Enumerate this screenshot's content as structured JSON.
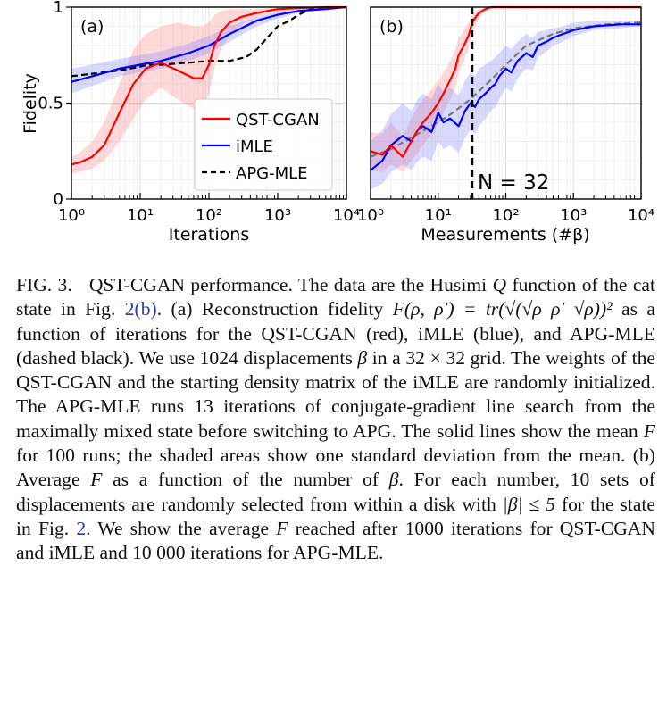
{
  "chart_data": [
    {
      "type": "line",
      "panel_label": "(a)",
      "xlabel": "Iterations",
      "ylabel": "Fidelity",
      "x_scale": "log",
      "xlim": [
        1,
        10000
      ],
      "ylim": [
        0,
        1
      ],
      "xticks": [
        1,
        10,
        100,
        1000,
        10000
      ],
      "xtick_labels": [
        "10⁰",
        "10¹",
        "10²",
        "10³",
        "10⁴"
      ],
      "yticks": [
        0,
        0.5,
        1
      ],
      "ytick_labels": [
        "0",
        "0.5",
        "1"
      ],
      "grid": true,
      "legend_position": "center-right",
      "series": [
        {
          "name": "QST-CGAN",
          "color": "#ff0000",
          "style": "solid",
          "x": [
            1,
            1.3,
            2,
            3,
            5,
            8,
            12,
            20,
            35,
            60,
            80,
            100,
            120,
            150,
            200,
            300,
            500,
            1000,
            2000,
            5000,
            10000
          ],
          "y": [
            0.18,
            0.19,
            0.22,
            0.28,
            0.45,
            0.6,
            0.68,
            0.71,
            0.67,
            0.63,
            0.63,
            0.7,
            0.8,
            0.87,
            0.92,
            0.95,
            0.97,
            0.99,
            0.995,
            1.0,
            1.0
          ],
          "band_lo": [
            0.13,
            0.14,
            0.16,
            0.2,
            0.3,
            0.42,
            0.52,
            0.58,
            0.52,
            0.47,
            0.47,
            0.55,
            0.68,
            0.78,
            0.86,
            0.91,
            0.95,
            0.98,
            0.99,
            0.995,
            0.995
          ],
          "band_hi": [
            0.22,
            0.24,
            0.3,
            0.4,
            0.6,
            0.78,
            0.86,
            0.9,
            0.92,
            0.9,
            0.9,
            0.92,
            0.96,
            0.98,
            0.99,
            0.99,
            0.99,
            1.0,
            1.0,
            1.0,
            1.0
          ]
        },
        {
          "name": "iMLE",
          "color": "#0000ff",
          "style": "solid",
          "x": [
            1,
            2,
            5,
            10,
            20,
            50,
            100,
            200,
            500,
            1000,
            2000,
            5000,
            10000
          ],
          "y": [
            0.61,
            0.64,
            0.68,
            0.7,
            0.72,
            0.76,
            0.8,
            0.86,
            0.93,
            0.96,
            0.98,
            0.99,
            1.0
          ],
          "band_lo": [
            0.55,
            0.59,
            0.64,
            0.66,
            0.68,
            0.72,
            0.76,
            0.82,
            0.9,
            0.94,
            0.97,
            0.985,
            0.995
          ],
          "band_hi": [
            0.68,
            0.7,
            0.73,
            0.75,
            0.77,
            0.81,
            0.85,
            0.9,
            0.95,
            0.98,
            0.99,
            0.995,
            1.0
          ]
        },
        {
          "name": "APG-MLE",
          "color": "#000000",
          "style": "dashed",
          "x": [
            1,
            5,
            10,
            13,
            20,
            50,
            100,
            200,
            350,
            500,
            700,
            1000,
            1500,
            2000,
            3000,
            10000
          ],
          "y": [
            0.64,
            0.67,
            0.69,
            0.7,
            0.7,
            0.71,
            0.72,
            0.72,
            0.74,
            0.78,
            0.84,
            0.9,
            0.93,
            0.96,
            0.99,
            1.0
          ]
        }
      ]
    },
    {
      "type": "line",
      "panel_label": "(b)",
      "xlabel": "Measurements (#β)",
      "x_scale": "log",
      "xlim": [
        1,
        10000
      ],
      "ylim": [
        0,
        1
      ],
      "xticks": [
        1,
        10,
        100,
        1000,
        10000
      ],
      "xtick_labels": [
        "10⁰",
        "10¹",
        "10²",
        "10³",
        "10⁴"
      ],
      "grid": true,
      "annotation": {
        "x": 32,
        "label": "N = 32"
      },
      "series": [
        {
          "name": "QST-CGAN",
          "color": "#ff0000",
          "style": "solid",
          "x": [
            1,
            1.5,
            2,
            3,
            4,
            5,
            6,
            8,
            10,
            12,
            15,
            18,
            20,
            24,
            28,
            32,
            36,
            40,
            50,
            60,
            80,
            100,
            1000,
            10000
          ],
          "y": [
            0.25,
            0.23,
            0.28,
            0.22,
            0.3,
            0.36,
            0.4,
            0.45,
            0.5,
            0.55,
            0.62,
            0.68,
            0.75,
            0.8,
            0.85,
            0.92,
            0.95,
            0.97,
            0.99,
            1.0,
            1.0,
            1.0,
            1.0,
            1.0
          ],
          "band_lo": [
            0.15,
            0.14,
            0.18,
            0.14,
            0.2,
            0.24,
            0.28,
            0.34,
            0.4,
            0.45,
            0.52,
            0.58,
            0.66,
            0.72,
            0.78,
            0.87,
            0.91,
            0.94,
            0.98,
            0.99,
            0.99,
            0.99,
            0.99,
            0.99
          ],
          "band_hi": [
            0.35,
            0.34,
            0.4,
            0.33,
            0.42,
            0.48,
            0.52,
            0.57,
            0.62,
            0.66,
            0.72,
            0.78,
            0.84,
            0.88,
            0.92,
            0.96,
            0.98,
            0.99,
            1.0,
            1.0,
            1.0,
            1.0,
            1.0,
            1.0
          ]
        },
        {
          "name": "iMLE",
          "color": "#0000ff",
          "style": "solid",
          "x": [
            1,
            1.5,
            2,
            3,
            4,
            5,
            6,
            8,
            10,
            12,
            15,
            20,
            25,
            30,
            35,
            40,
            50,
            60,
            70,
            80,
            100,
            120,
            150,
            200,
            250,
            300,
            400,
            500,
            700,
            1000,
            2000,
            5000,
            10000
          ],
          "y": [
            0.15,
            0.2,
            0.28,
            0.33,
            0.3,
            0.36,
            0.38,
            0.35,
            0.45,
            0.4,
            0.42,
            0.38,
            0.46,
            0.5,
            0.48,
            0.52,
            0.55,
            0.58,
            0.6,
            0.64,
            0.68,
            0.66,
            0.72,
            0.76,
            0.74,
            0.8,
            0.82,
            0.84,
            0.86,
            0.88,
            0.9,
            0.91,
            0.91
          ],
          "band_lo": [
            0.05,
            0.08,
            0.14,
            0.18,
            0.15,
            0.2,
            0.22,
            0.2,
            0.3,
            0.26,
            0.28,
            0.24,
            0.32,
            0.36,
            0.34,
            0.38,
            0.42,
            0.46,
            0.48,
            0.52,
            0.58,
            0.56,
            0.63,
            0.68,
            0.67,
            0.74,
            0.77,
            0.8,
            0.82,
            0.85,
            0.88,
            0.89,
            0.9
          ],
          "band_hi": [
            0.3,
            0.36,
            0.44,
            0.5,
            0.46,
            0.52,
            0.55,
            0.52,
            0.6,
            0.56,
            0.58,
            0.54,
            0.62,
            0.66,
            0.64,
            0.68,
            0.7,
            0.72,
            0.74,
            0.76,
            0.8,
            0.78,
            0.82,
            0.86,
            0.84,
            0.87,
            0.88,
            0.89,
            0.9,
            0.92,
            0.93,
            0.93,
            0.93
          ]
        },
        {
          "name": "APG-MLE",
          "color": "#777777",
          "style": "dashed",
          "x": [
            1,
            2,
            4,
            8,
            15,
            30,
            60,
            100,
            200,
            500,
            1000,
            3000,
            10000
          ],
          "y": [
            0.22,
            0.26,
            0.32,
            0.38,
            0.44,
            0.52,
            0.62,
            0.7,
            0.8,
            0.86,
            0.89,
            0.91,
            0.92
          ]
        }
      ]
    }
  ],
  "caption": {
    "fig_label": "FIG. 3.",
    "t1": "QST-CGAN performance. The data are the Husimi ",
    "q": "Q",
    "t2": " function of the cat state in Fig. ",
    "ref1": "2(b)",
    "t3": ". (a) Reconstruction fidelity ",
    "formula": "F(ρ, ρ′) = tr(√(√ρ ρ′ √ρ))²",
    "t4": " as a function of iterations for the QST-CGAN (red), iMLE (blue), and APG-MLE (dashed black). We use 1024 displacements ",
    "beta1": "β",
    "t5": " in a 32 × 32 grid. The weights of the QST-CGAN and the starting density matrix of the iMLE are randomly initialized. The APG-MLE runs 13 iterations of conjugate-gradient line search from the maximally mixed state before switching to APG. The solid lines show the mean ",
    "f1": "F",
    "t6": " for 100 runs; the shaded areas show one standard deviation from the mean. (b) Average ",
    "f2": "F",
    "t7": " as a function of the number of ",
    "beta2": "β",
    "t8": ". For each number, 10 sets of displacements are randomly selected from within a disk with ",
    "abs_beta": "|β| ≤ 5",
    "t9": " for the state in Fig. ",
    "ref2": "2",
    "t10": ". We show the average ",
    "f3": "F",
    "t11": " reached after 1000 iterations for QST-CGAN and iMLE and 10 000 iterations for APG-MLE."
  }
}
